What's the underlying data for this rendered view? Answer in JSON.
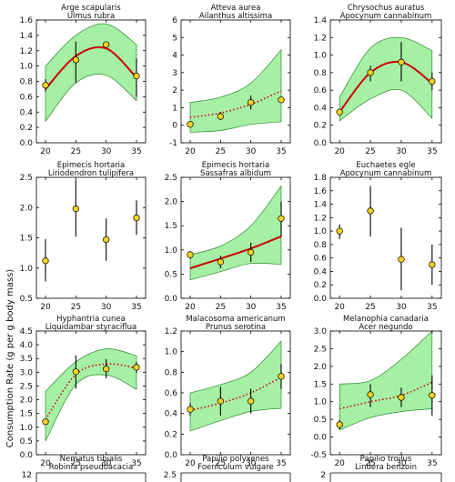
{
  "figure": {
    "ylabel": "Consumption Rate (g per g body mass)",
    "colors": {
      "band": "#a6f0a6",
      "band_edge": "#2a8a2a",
      "fit": "#cc0000",
      "point_fill": "#f5d21f",
      "point_edge": "#000000"
    }
  },
  "chart_data": [
    {
      "type": "scatter",
      "title": [
        "Arge scapularis",
        "Ulmus rubra"
      ],
      "x": [
        20,
        25,
        30,
        35
      ],
      "y": [
        0.75,
        1.08,
        1.28,
        0.87
      ],
      "yerr": [
        [
          0.67,
          0.83
        ],
        [
          0.78,
          1.32
        ],
        [
          1.28,
          1.28
        ],
        [
          0.6,
          1.1
        ]
      ],
      "fit": {
        "style": "solid",
        "y": [
          0.7,
          1.13,
          1.23,
          0.85
        ]
      },
      "band": {
        "lo": [
          0.28,
          0.78,
          0.88,
          0.55
        ],
        "hi": [
          1.0,
          1.4,
          1.55,
          1.28
        ]
      },
      "ylim": [
        0.0,
        1.6
      ],
      "yticks": [
        0.0,
        0.2,
        0.4,
        0.6,
        0.8,
        1.0,
        1.2,
        1.4,
        1.6
      ],
      "xticks": [
        20,
        25,
        30,
        35
      ]
    },
    {
      "type": "scatter",
      "title": [
        "Atteva aurea",
        "Ailanthus altissima"
      ],
      "x": [
        20,
        25,
        30,
        35
      ],
      "y": [
        0.05,
        0.5,
        1.3,
        1.45
      ],
      "yerr": [
        [
          0.05,
          0.05
        ],
        [
          0.3,
          0.75
        ],
        [
          0.9,
          1.7
        ],
        [
          1.45,
          1.45
        ]
      ],
      "fit": {
        "style": "dotted",
        "y": [
          0.45,
          0.7,
          1.2,
          1.95
        ]
      },
      "band": {
        "lo": [
          -0.4,
          -0.3,
          0.05,
          0.2
        ],
        "hi": [
          1.3,
          1.6,
          2.4,
          4.3
        ]
      },
      "ylim": [
        -1,
        6
      ],
      "yticks": [
        -1,
        0,
        1,
        2,
        3,
        4,
        5,
        6
      ],
      "xticks": [
        20,
        25,
        30,
        35
      ]
    },
    {
      "type": "scatter",
      "title": [
        "Chrysochus auratus",
        "Apocynum cannabinum"
      ],
      "x": [
        20,
        25,
        30,
        35
      ],
      "y": [
        0.35,
        0.8,
        0.92,
        0.7
      ],
      "yerr": [
        [
          0.32,
          0.38
        ],
        [
          0.7,
          0.88
        ],
        [
          0.7,
          1.15
        ],
        [
          0.6,
          0.8
        ]
      ],
      "fit": {
        "style": "solid",
        "y": [
          0.35,
          0.8,
          0.92,
          0.68
        ]
      },
      "band": {
        "lo": [
          0.25,
          0.5,
          0.6,
          0.28
        ],
        "hi": [
          0.52,
          1.08,
          1.2,
          1.05
        ]
      },
      "ylim": [
        0.0,
        1.4
      ],
      "yticks": [
        0.0,
        0.2,
        0.4,
        0.6,
        0.8,
        1.0,
        1.2,
        1.4
      ],
      "xticks": [
        20,
        25,
        30,
        35
      ]
    },
    {
      "type": "scatter",
      "title": [
        "Epimecis hortaria",
        "Liriodendron tulipifera"
      ],
      "x": [
        20,
        25,
        30,
        35
      ],
      "y": [
        1.12,
        1.98,
        1.47,
        1.83
      ],
      "yerr": [
        [
          0.78,
          1.48
        ],
        [
          1.52,
          2.45
        ],
        [
          1.12,
          1.82
        ],
        [
          1.55,
          2.12
        ]
      ],
      "fit": null,
      "band": null,
      "ylim": [
        0.5,
        2.5
      ],
      "yticks": [
        0.5,
        1.0,
        1.5,
        2.0,
        2.5
      ],
      "xticks": [
        20,
        25,
        30,
        35
      ]
    },
    {
      "type": "scatter",
      "title": [
        "Epimecis hortaria",
        "Sassafras albidum"
      ],
      "x": [
        20,
        25,
        30,
        35
      ],
      "y": [
        0.9,
        0.75,
        0.95,
        1.65
      ],
      "yerr": [
        [
          0.82,
          0.98
        ],
        [
          0.62,
          0.88
        ],
        [
          0.75,
          1.15
        ],
        [
          1.28,
          2.0
        ]
      ],
      "fit": {
        "style": "solid",
        "y": [
          0.62,
          0.82,
          1.03,
          1.28
        ]
      },
      "band": {
        "lo": [
          0.38,
          0.55,
          0.72,
          0.7
        ],
        "hi": [
          0.9,
          1.08,
          1.5,
          2.32
        ]
      },
      "ylim": [
        0.0,
        2.5
      ],
      "yticks": [
        0.0,
        0.5,
        1.0,
        1.5,
        2.0,
        2.5
      ],
      "xticks": [
        20,
        25,
        30,
        35
      ]
    },
    {
      "type": "scatter",
      "title": [
        "Euchaetes egle",
        "Apocynum cannabinum"
      ],
      "x": [
        20,
        25,
        30,
        35
      ],
      "y": [
        1.0,
        1.3,
        0.58,
        0.5
      ],
      "yerr": [
        [
          0.88,
          1.1
        ],
        [
          0.92,
          1.67
        ],
        [
          0.12,
          1.05
        ],
        [
          0.2,
          0.8
        ]
      ],
      "fit": null,
      "band": null,
      "ylim": [
        0.0,
        1.8
      ],
      "yticks": [
        0.0,
        0.2,
        0.4,
        0.6,
        0.8,
        1.0,
        1.2,
        1.4,
        1.6,
        1.8
      ],
      "xticks": [
        20,
        25,
        30,
        35
      ]
    },
    {
      "type": "scatter",
      "title": [
        "Hyphantria cunea",
        "Liquidambar styraciflua"
      ],
      "x": [
        20,
        25,
        30,
        35
      ],
      "y": [
        1.2,
        3.02,
        3.12,
        3.18
      ],
      "yerr": [
        [
          1.2,
          1.2
        ],
        [
          2.4,
          3.62
        ],
        [
          2.78,
          3.48
        ],
        [
          2.98,
          3.38
        ]
      ],
      "fit": {
        "style": "dotted",
        "y": [
          1.28,
          2.92,
          3.3,
          3.15
        ]
      },
      "band": {
        "lo": [
          0.5,
          2.55,
          2.9,
          2.38
        ],
        "hi": [
          2.3,
          3.38,
          3.85,
          3.6
        ]
      },
      "ylim": [
        0.0,
        4.5
      ],
      "yticks": [
        0.0,
        0.5,
        1.0,
        1.5,
        2.0,
        2.5,
        3.0,
        3.5,
        4.0,
        4.5
      ],
      "xticks": [
        20,
        25,
        30,
        35
      ]
    },
    {
      "type": "scatter",
      "title": [
        "Malacosoma americanum",
        "Prunus serotina"
      ],
      "x": [
        20,
        25,
        30,
        35
      ],
      "y": [
        0.44,
        0.52,
        0.52,
        0.76
      ],
      "yerr": [
        [
          0.38,
          0.5
        ],
        [
          0.38,
          0.66
        ],
        [
          0.4,
          0.64
        ],
        [
          0.64,
          0.88
        ]
      ],
      "fit": {
        "style": "dotted",
        "y": [
          0.43,
          0.5,
          0.6,
          0.75
        ]
      },
      "band": {
        "lo": [
          0.23,
          0.33,
          0.42,
          0.45
        ],
        "hi": [
          0.6,
          0.68,
          0.8,
          1.1
        ]
      },
      "ylim": [
        0.0,
        1.2
      ],
      "yticks": [
        0.0,
        0.2,
        0.4,
        0.6,
        0.8,
        1.0,
        1.2
      ],
      "xticks": [
        20,
        25,
        30,
        35
      ]
    },
    {
      "type": "scatter",
      "title": [
        "Melanophia canadaria",
        "Acer negundo"
      ],
      "x": [
        20,
        25,
        30,
        35
      ],
      "y": [
        0.35,
        1.2,
        1.12,
        1.18
      ],
      "yerr": [
        [
          0.22,
          0.48
        ],
        [
          0.85,
          1.5
        ],
        [
          0.85,
          1.4
        ],
        [
          0.6,
          1.75
        ]
      ],
      "fit": {
        "style": "dotted",
        "y": [
          0.8,
          1.0,
          1.18,
          1.55
        ]
      },
      "band": {
        "lo": [
          0.2,
          0.55,
          0.72,
          0.8
        ],
        "hi": [
          1.5,
          1.6,
          2.2,
          3.0
        ]
      },
      "ylim": [
        -0.5,
        3.0
      ],
      "yticks": [
        -0.5,
        0.0,
        0.5,
        1.0,
        1.5,
        2.0,
        2.5,
        3.0
      ],
      "xticks": [
        20,
        25,
        30,
        35
      ]
    },
    {
      "type": "scatter",
      "title": [
        "Nematus tibialis",
        "Robinia pseudoacacia"
      ],
      "partial": true,
      "yticks": [
        12
      ]
    },
    {
      "type": "scatter",
      "title": [
        "Papilio polyxenes",
        "Foeniculum vulgare"
      ],
      "partial": true,
      "yticks": [
        2.5
      ]
    },
    {
      "type": "scatter",
      "title": [
        "Papilio troilus",
        "Lindera benzoin"
      ],
      "partial": true,
      "yticks": [
        2.0
      ]
    }
  ]
}
